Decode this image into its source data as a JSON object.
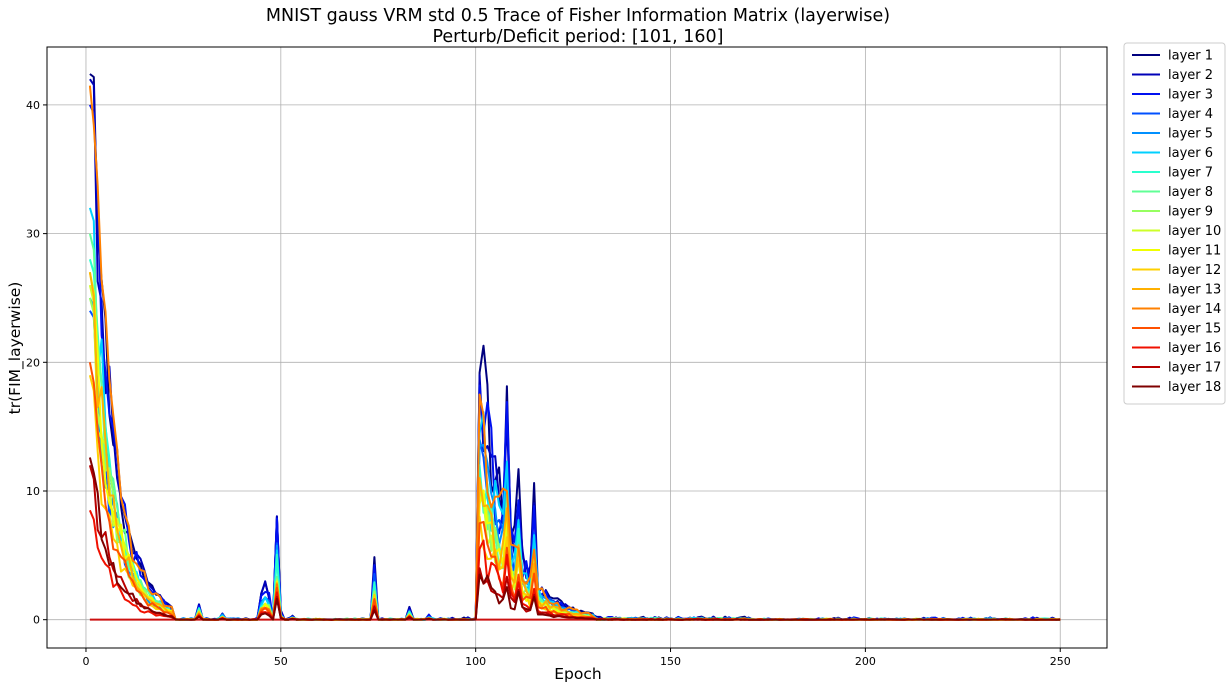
{
  "chart_data": {
    "type": "line",
    "title_line1": "MNIST gauss VRM std 0.5 Trace of Fisher Information Matrix (layerwise)",
    "title_line2": "Perturb/Deficit period: [101, 160]",
    "xlabel": "Epoch",
    "ylabel": "tr(FIM_layerwise)",
    "xlim": [
      -10,
      262
    ],
    "ylim": [
      -2.2,
      44.5
    ],
    "xticks": [
      0,
      50,
      100,
      150,
      200,
      250
    ],
    "yticks": [
      0,
      10,
      20,
      30,
      40
    ],
    "grid": true,
    "legend_position": "outside-right",
    "baseline_color": "#cc1010",
    "series": [
      {
        "name": "layer 1",
        "color": "#00007f",
        "peak_early": 42.4,
        "peak_late": 19.2,
        "spike_scale": 1.0
      },
      {
        "name": "layer 2",
        "color": "#0000b8",
        "peak_early": 42.0,
        "peak_late": 19.0,
        "spike_scale": 1.0
      },
      {
        "name": "layer 3",
        "color": "#0010f0",
        "peak_early": 40.0,
        "peak_late": 18.2,
        "spike_scale": 0.95
      },
      {
        "name": "layer 4",
        "color": "#0050ff",
        "peak_early": 24.0,
        "peak_late": 14.0,
        "spike_scale": 0.7
      },
      {
        "name": "layer 5",
        "color": "#0090ff",
        "peak_early": 25.0,
        "peak_late": 13.5,
        "spike_scale": 0.65
      },
      {
        "name": "layer 6",
        "color": "#00d0ff",
        "peak_early": 32.0,
        "peak_late": 14.5,
        "spike_scale": 0.6
      },
      {
        "name": "layer 7",
        "color": "#29ffce",
        "peak_early": 28.0,
        "peak_late": 12.0,
        "spike_scale": 0.55
      },
      {
        "name": "layer 8",
        "color": "#60ff96",
        "peak_early": 30.0,
        "peak_late": 11.0,
        "spike_scale": 0.5
      },
      {
        "name": "layer 9",
        "color": "#96ff60",
        "peak_early": 25.0,
        "peak_late": 10.0,
        "spike_scale": 0.45
      },
      {
        "name": "layer 10",
        "color": "#ceff29",
        "peak_early": 26.0,
        "peak_late": 9.5,
        "spike_scale": 0.42
      },
      {
        "name": "layer 11",
        "color": "#f0ff00",
        "peak_early": 27.0,
        "peak_late": 9.0,
        "spike_scale": 0.4
      },
      {
        "name": "layer 12",
        "color": "#ffd000",
        "peak_early": 19.0,
        "peak_late": 8.0,
        "spike_scale": 0.38
      },
      {
        "name": "layer 13",
        "color": "#ffb000",
        "peak_early": 27.0,
        "peak_late": 11.0,
        "spike_scale": 0.36
      },
      {
        "name": "layer 14",
        "color": "#ff8000",
        "peak_early": 41.5,
        "peak_late": 17.5,
        "spike_scale": 0.34
      },
      {
        "name": "layer 15",
        "color": "#ff5000",
        "peak_early": 20.0,
        "peak_late": 7.5,
        "spike_scale": 0.3
      },
      {
        "name": "layer 16",
        "color": "#f01000",
        "peak_early": 8.5,
        "peak_late": 5.5,
        "spike_scale": 0.25
      },
      {
        "name": "layer 17",
        "color": "#b80000",
        "peak_early": 12.0,
        "peak_late": 4.0,
        "spike_scale": 0.2
      },
      {
        "name": "layer 18",
        "color": "#7f0000",
        "peak_early": 12.6,
        "peak_late": 3.5,
        "spike_scale": 0.18
      }
    ]
  }
}
